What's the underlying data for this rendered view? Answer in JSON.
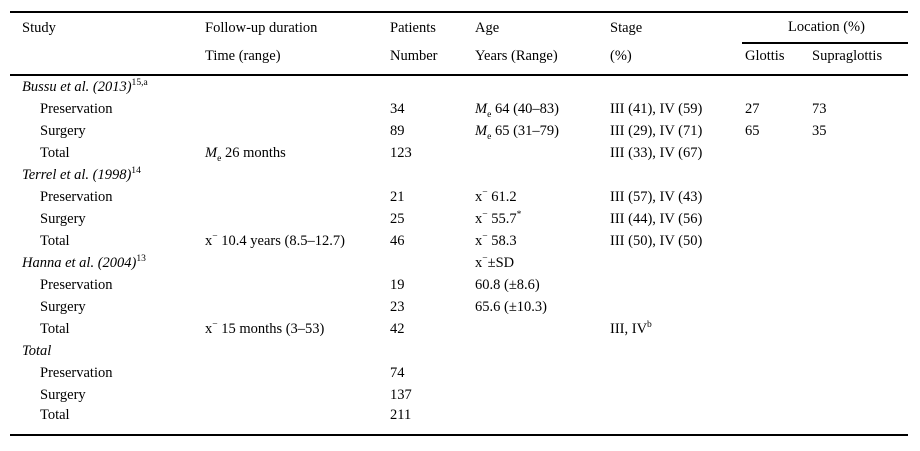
{
  "header": {
    "col_study": "Study",
    "col_followup": [
      "Follow-up duration",
      "Time (range)"
    ],
    "col_patients": [
      "Patients",
      "Number"
    ],
    "col_age": [
      "Age",
      "Years (Range)"
    ],
    "col_stage": [
      "Stage",
      "(%)"
    ],
    "col_location": "Location (%)",
    "col_glottis": "Glottis",
    "col_supraglottis": "Supraglottis"
  },
  "rows": [
    {
      "kind": "group",
      "study": [
        {
          "t": "Bussu et al. (2013)",
          "s": "i"
        },
        {
          "t": "15,a",
          "s": "sup"
        }
      ]
    },
    {
      "kind": "sub",
      "study": "Preservation",
      "patients": "34",
      "age": [
        {
          "t": "M",
          "s": "i"
        },
        {
          "t": "e",
          "s": "sub"
        },
        {
          "t": " 64 (40–83)"
        }
      ],
      "stage": "III (41), IV (59)",
      "glottis": "27",
      "supraglottis": "73"
    },
    {
      "kind": "sub",
      "study": "Surgery",
      "patients": "89",
      "age": [
        {
          "t": "M",
          "s": "i"
        },
        {
          "t": "e",
          "s": "sub"
        },
        {
          "t": " 65 (31–79)"
        }
      ],
      "stage": "III (29), IV (71)",
      "glottis": "65",
      "supraglottis": "35"
    },
    {
      "kind": "sub",
      "study": "Total",
      "followup": [
        {
          "t": "M",
          "s": "i"
        },
        {
          "t": "e",
          "s": "sub"
        },
        {
          "t": " 26 months"
        }
      ],
      "patients": "123",
      "stage": "III (33), IV (67)"
    },
    {
      "kind": "group",
      "study": [
        {
          "t": "Terrel et al. (1998)",
          "s": "i"
        },
        {
          "t": "14",
          "s": "sup"
        }
      ]
    },
    {
      "kind": "sub",
      "study": "Preservation",
      "patients": "21",
      "age": [
        {
          "t": "x"
        },
        {
          "t": "−",
          "s": "sup"
        },
        {
          "t": " 61.2"
        }
      ],
      "stage": "III (57), IV (43)"
    },
    {
      "kind": "sub",
      "study": "Surgery",
      "patients": "25",
      "age": [
        {
          "t": "x"
        },
        {
          "t": "−",
          "s": "sup"
        },
        {
          "t": " 55.7"
        },
        {
          "t": "*",
          "s": "sup"
        }
      ],
      "stage": "III (44), IV (56)"
    },
    {
      "kind": "sub",
      "study": "Total",
      "followup": [
        {
          "t": "x"
        },
        {
          "t": "−",
          "s": "sup"
        },
        {
          "t": " 10.4 years (8.5–12.7)"
        }
      ],
      "patients": "46",
      "age": [
        {
          "t": "x"
        },
        {
          "t": "−",
          "s": "sup"
        },
        {
          "t": " 58.3"
        }
      ],
      "stage": "III (50), IV (50)"
    },
    {
      "kind": "group",
      "study": [
        {
          "t": "Hanna et al. (2004)",
          "s": "i"
        },
        {
          "t": "13",
          "s": "sup"
        }
      ],
      "age": [
        {
          "t": "x"
        },
        {
          "t": "−",
          "s": "sup"
        },
        {
          "t": "±SD"
        }
      ]
    },
    {
      "kind": "sub",
      "study": "Preservation",
      "patients": "19",
      "age": "60.8 (±8.6)"
    },
    {
      "kind": "sub",
      "study": "Surgery",
      "patients": "23",
      "age": "65.6 (±10.3)"
    },
    {
      "kind": "sub",
      "study": "Total",
      "followup": [
        {
          "t": "x"
        },
        {
          "t": "−",
          "s": "sup"
        },
        {
          "t": " 15 months (3–53)"
        }
      ],
      "patients": "42",
      "stage": [
        {
          "t": "III, IV"
        },
        {
          "t": "b",
          "s": "sup"
        }
      ]
    },
    {
      "kind": "group",
      "study": [
        {
          "t": "Total",
          "s": "i"
        }
      ]
    },
    {
      "kind": "sub",
      "study": "Preservation",
      "patients": "74"
    },
    {
      "kind": "sub",
      "study": "Surgery",
      "patients": "137"
    },
    {
      "kind": "sub",
      "study": "Total",
      "patients": "211"
    }
  ]
}
